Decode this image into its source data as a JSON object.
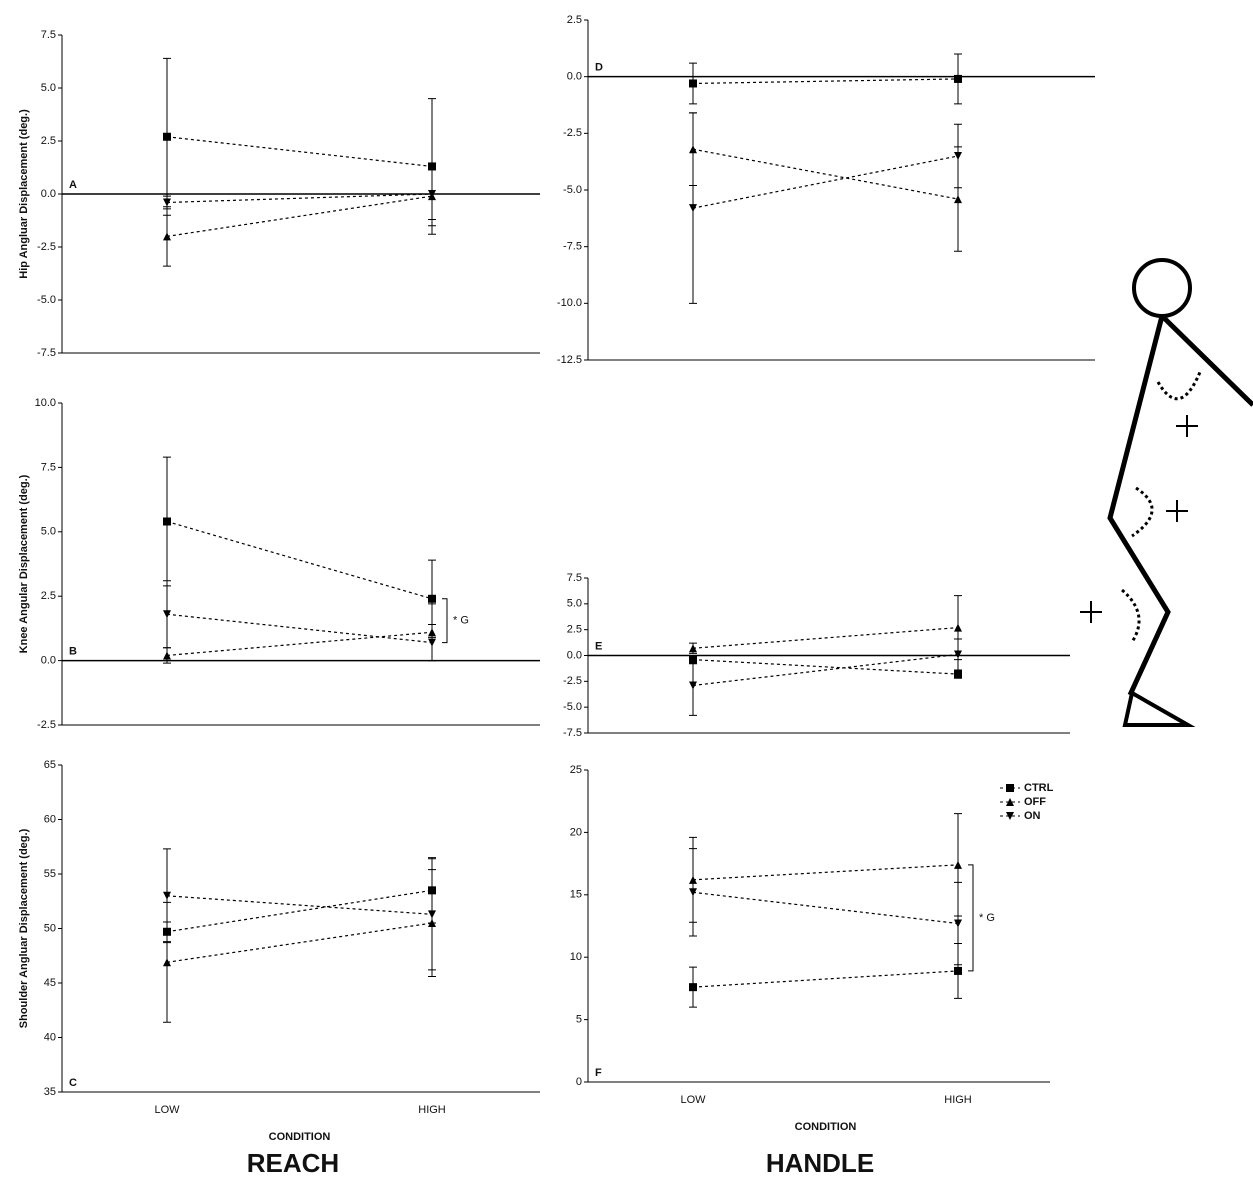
{
  "column_titles": [
    "REACH",
    "HANDLE"
  ],
  "chart_data": [
    {
      "type": "line",
      "panel": "A",
      "y_label": "Hip Angluar Displacement (deg.)",
      "zero_line": true,
      "ylim": [
        -7.5,
        7.5
      ],
      "yticks": [
        -7.5,
        {
          "value": -5,
          "label": "-5.0"
        },
        -2.5,
        {
          "value": 0,
          "label": "0.0"
        },
        2.5,
        {
          "value": 5,
          "label": "5.0"
        },
        7.5
      ],
      "series": [
        {
          "name": "CTRL",
          "color": "#000000",
          "marker": "square",
          "values": [
            2.7,
            1.3
          ],
          "errors": [
            3.7,
            3.2
          ]
        },
        {
          "name": "OFF",
          "color": "#000000",
          "marker": "triangle-up",
          "values": [
            -2.0,
            -0.1
          ],
          "errors": [
            1.4,
            1.4
          ]
        },
        {
          "name": "ON",
          "color": "#000000",
          "marker": "triangle-down",
          "values": [
            -0.4,
            0.0
          ],
          "errors": [
            0.3,
            1.2
          ]
        }
      ]
    },
    {
      "type": "line",
      "panel": "D",
      "zero_line": true,
      "ylim": [
        -12.5,
        2.5
      ],
      "yticks": [
        -12.5,
        {
          "value": -10,
          "label": "-10.0"
        },
        -7.5,
        {
          "value": -5,
          "label": "-5.0"
        },
        -2.5,
        {
          "value": 0,
          "label": "0.0"
        },
        2.5
      ],
      "series": [
        {
          "name": "CTRL",
          "color": "#000000",
          "marker": "square",
          "values": [
            -0.3,
            -0.1
          ],
          "errors": [
            0.9,
            1.1
          ]
        },
        {
          "name": "OFF",
          "color": "#000000",
          "marker": "triangle-up",
          "values": [
            -3.2,
            -5.4
          ],
          "errors": [
            1.6,
            2.3
          ]
        },
        {
          "name": "ON",
          "color": "#000000",
          "marker": "triangle-down",
          "values": [
            -5.8,
            -3.5
          ],
          "errors": [
            4.2,
            1.4
          ]
        }
      ]
    },
    {
      "type": "line",
      "panel": "B",
      "y_label": "Knee Angular Displacement (deg.)",
      "zero_line": true,
      "annotation": "* G",
      "ylim": [
        -2.5,
        10
      ],
      "yticks": [
        -2.5,
        {
          "value": 0,
          "label": "0.0"
        },
        2.5,
        {
          "value": 5,
          "label": "5.0"
        },
        7.5,
        {
          "value": 10,
          "label": "10.0"
        }
      ],
      "series": [
        {
          "name": "CTRL",
          "color": "#000000",
          "marker": "square",
          "values": [
            5.4,
            2.4
          ],
          "errors": [
            2.5,
            1.5
          ]
        },
        {
          "name": "OFF",
          "color": "#000000",
          "marker": "triangle-up",
          "values": [
            0.2,
            1.1
          ],
          "errors": [
            0.3,
            1.1
          ]
        },
        {
          "name": "ON",
          "color": "#000000",
          "marker": "triangle-down",
          "values": [
            1.8,
            0.7
          ],
          "errors": [
            1.3,
            0.7
          ]
        }
      ]
    },
    {
      "type": "line",
      "panel": "E",
      "zero_line": true,
      "ylim": [
        -7.5,
        7.5
      ],
      "yticks": [
        -7.5,
        {
          "value": -5,
          "label": "-5.0"
        },
        -2.5,
        {
          "value": 0,
          "label": "0.0"
        },
        2.5,
        {
          "value": 5,
          "label": "5.0"
        },
        7.5
      ],
      "series": [
        {
          "name": "CTRL",
          "color": "#000000",
          "marker": "square",
          "values": [
            -0.4,
            -1.8
          ],
          "errors": [
            0.4,
            0.4
          ]
        },
        {
          "name": "OFF",
          "color": "#000000",
          "marker": "triangle-up",
          "values": [
            0.7,
            2.7
          ],
          "errors": [
            0.5,
            3.1
          ]
        },
        {
          "name": "ON",
          "color": "#000000",
          "marker": "triangle-down",
          "values": [
            -2.9,
            0.1
          ],
          "errors": [
            2.9,
            1.5
          ]
        }
      ]
    },
    {
      "type": "line",
      "panel": "C",
      "y_label": "Shoulder Angluar Displacement (deg.)",
      "x_label": "CONDITION",
      "categories": [
        "LOW",
        "HIGH"
      ],
      "ylim": [
        35,
        65
      ],
      "yticks": [
        35,
        40,
        45,
        50,
        55,
        60,
        65
      ],
      "series": [
        {
          "name": "CTRL",
          "color": "#000000",
          "marker": "square",
          "values": [
            49.7,
            53.5
          ],
          "errors": [
            0.9,
            3.0
          ]
        },
        {
          "name": "OFF",
          "color": "#000000",
          "marker": "triangle-up",
          "values": [
            46.9,
            50.5
          ],
          "errors": [
            5.5,
            4.9
          ]
        },
        {
          "name": "ON",
          "color": "#000000",
          "marker": "triangle-down",
          "values": [
            53.0,
            51.3
          ],
          "errors": [
            4.3,
            5.1
          ]
        }
      ]
    },
    {
      "type": "line",
      "panel": "F",
      "x_label": "CONDITION",
      "annotation": "* G",
      "legend": true,
      "categories": [
        "LOW",
        "HIGH"
      ],
      "ylim": [
        0,
        25
      ],
      "yticks": [
        0,
        5,
        10,
        15,
        20,
        25
      ],
      "series": [
        {
          "name": "CTRL",
          "color": "#000000",
          "marker": "square",
          "values": [
            7.6,
            8.9
          ],
          "errors": [
            1.6,
            2.2
          ]
        },
        {
          "name": "OFF",
          "color": "#000000",
          "marker": "triangle-up",
          "values": [
            16.2,
            17.4
          ],
          "errors": [
            3.4,
            4.1
          ]
        },
        {
          "name": "ON",
          "color": "#000000",
          "marker": "triangle-down",
          "values": [
            15.2,
            12.7
          ],
          "errors": [
            3.5,
            3.3
          ]
        }
      ]
    }
  ]
}
